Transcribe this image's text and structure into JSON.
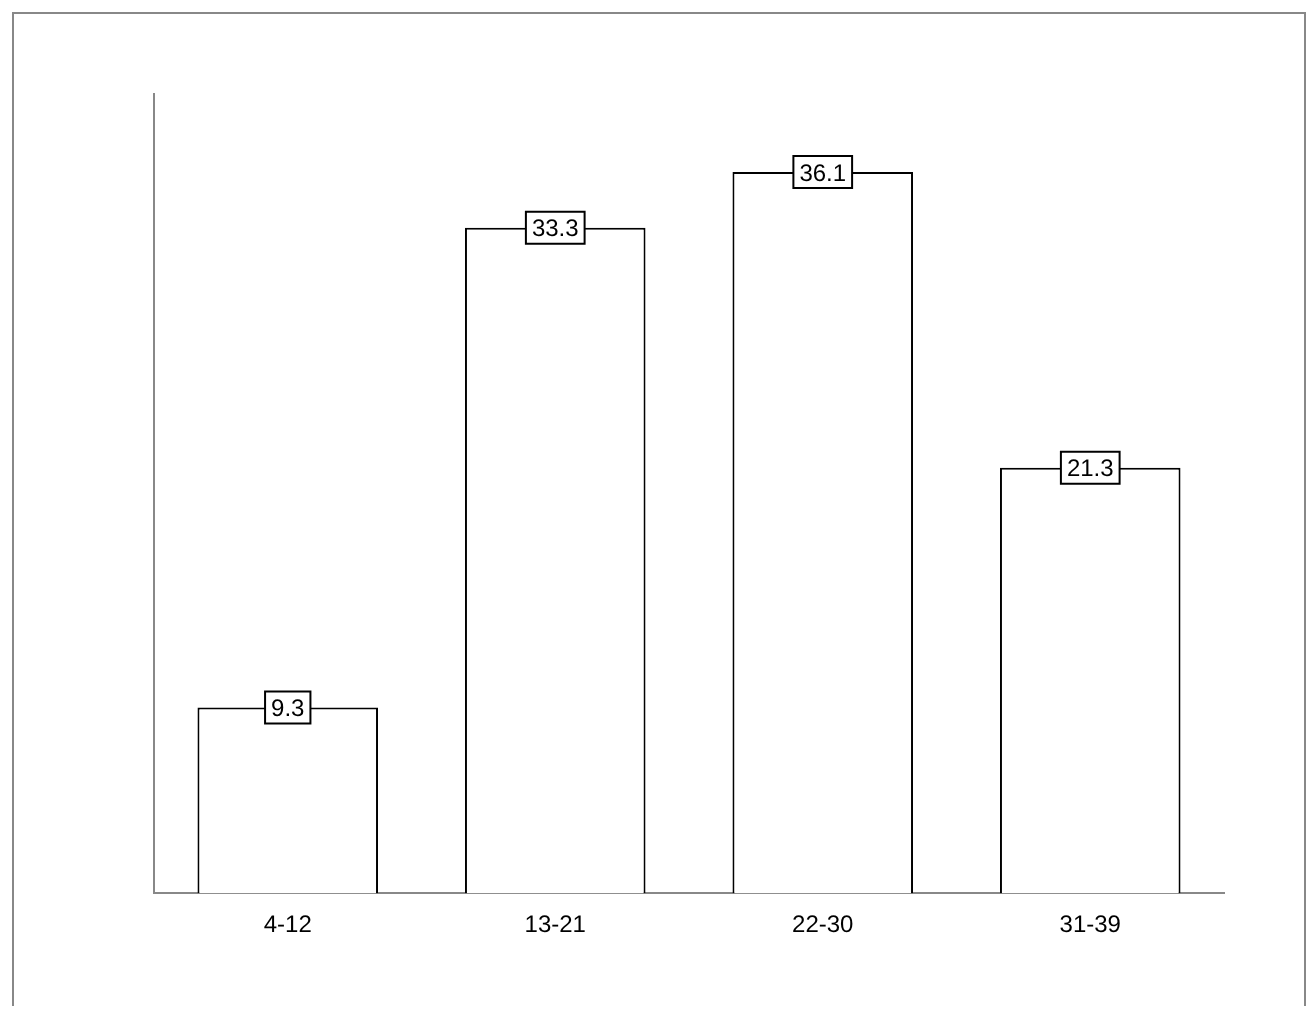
{
  "chart_data": {
    "type": "bar",
    "categories": [
      "4-12",
      "13-21",
      "22-30",
      "31-39"
    ],
    "values": [
      9.3,
      33.3,
      36.1,
      21.3
    ],
    "color": "#ffffff",
    "ylim": [
      0,
      40
    ],
    "tick_labels": "x",
    "data_labels": true,
    "grid": false,
    "legend": false
  }
}
